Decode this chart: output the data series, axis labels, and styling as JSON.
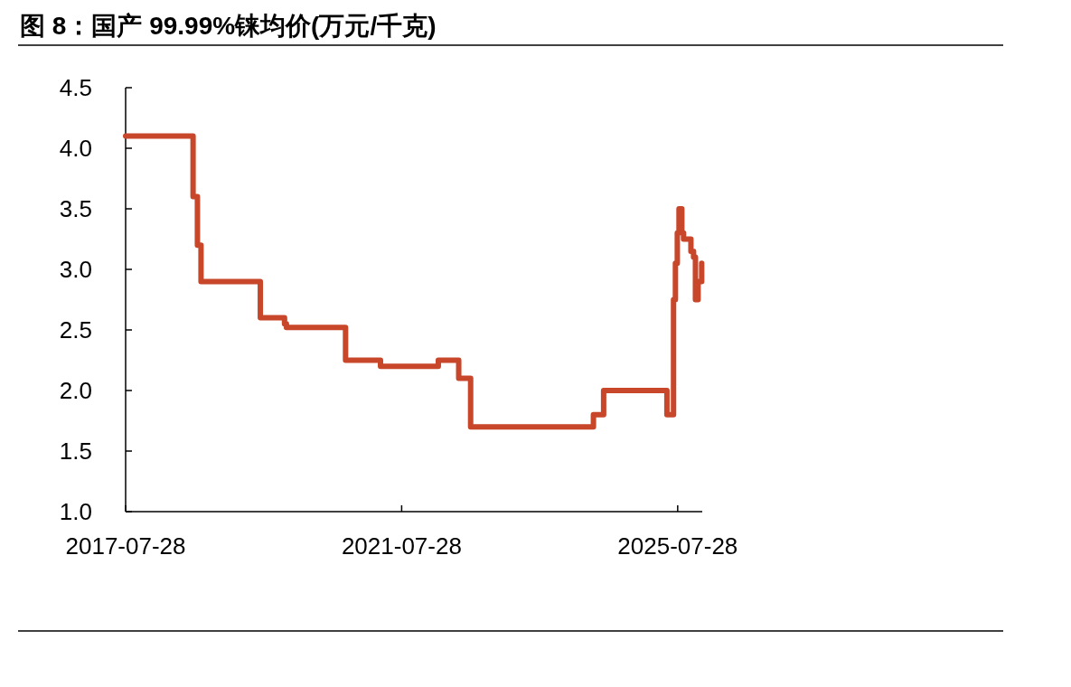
{
  "chart_data": {
    "type": "step",
    "title": "图 8：国产 99.99%铼均价(万元/千克)",
    "x": [
      "2017-07-28",
      "2018-07-20",
      "2018-08-12",
      "2018-08-31",
      "2019-07-11",
      "2019-11-16",
      "2019-11-26",
      "2020-10-04",
      "2021-04-07",
      "2022-02-07",
      "2022-05-26",
      "2022-07-28",
      "2024-05-08",
      "2024-07-01",
      "2025-06-01",
      "2025-07-06",
      "2025-07-16",
      "2025-07-26",
      "2025-08-04",
      "2025-08-19",
      "2025-08-28",
      "2025-10-06",
      "2025-10-20",
      "2025-10-30",
      "2025-11-13",
      "2025-12-02"
    ],
    "series": [
      {
        "color": "#c8462a",
        "values": [
          4.1,
          3.6,
          3.2,
          2.9,
          2.6,
          2.55,
          2.52,
          2.25,
          2.2,
          2.25,
          2.1,
          1.7,
          1.8,
          2.0,
          1.8,
          2.75,
          3.05,
          3.3,
          3.5,
          3.3,
          3.25,
          3.15,
          3.1,
          2.75,
          2.9,
          3.05
        ]
      }
    ],
    "xlim": [
      "2017-07-28",
      "2025-12-05"
    ],
    "xticks": [
      "2017-07-28",
      "2021-07-28",
      "2025-07-28"
    ],
    "ylim": [
      1.0,
      4.5
    ],
    "yticks": [
      {
        "value": 1.0,
        "label": "1.0"
      },
      {
        "value": 1.5,
        "label": "1.5"
      },
      {
        "value": 2.0,
        "label": "2.0"
      },
      {
        "value": 2.5,
        "label": "2.5"
      },
      {
        "value": 3.0,
        "label": "3.0"
      },
      {
        "value": 3.5,
        "label": "3.5"
      },
      {
        "value": 4.0,
        "label": "4.0"
      },
      {
        "value": 4.5,
        "label": "4.5"
      }
    ],
    "grid": false
  }
}
